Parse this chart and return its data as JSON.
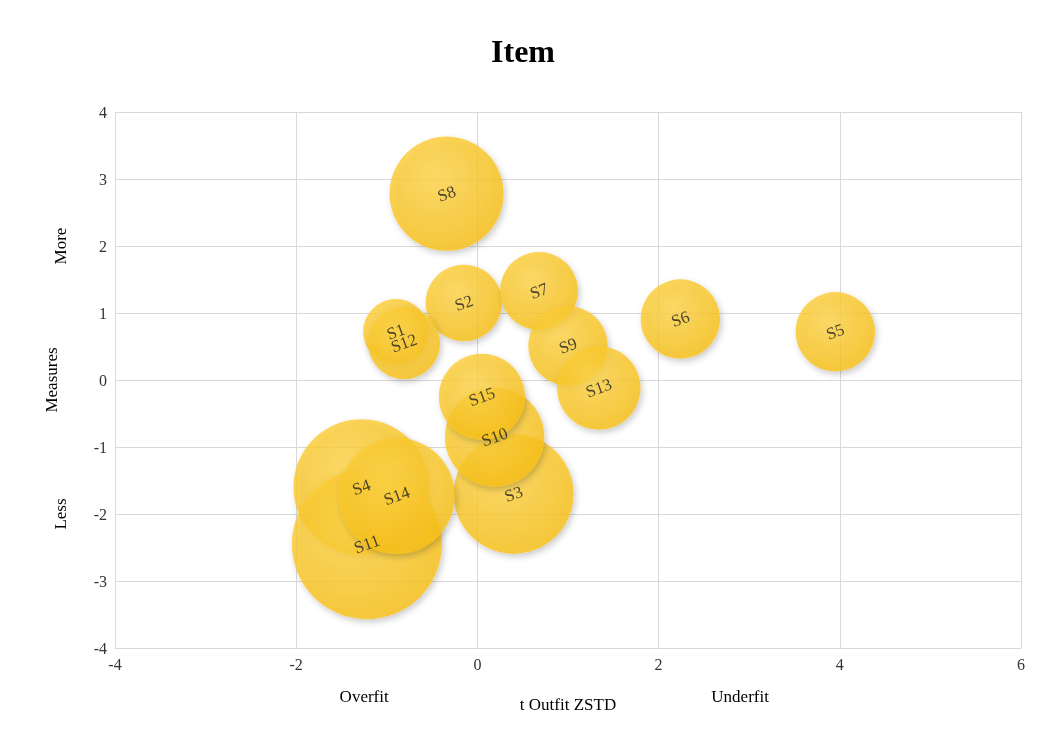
{
  "chart_data": {
    "type": "bubble",
    "title": "Item",
    "xlabel": "t Outfit ZSTD",
    "ylabel": "Measures",
    "annotations": [
      "Overfit",
      "Underfit",
      "Less",
      "More"
    ],
    "xlim": [
      -4,
      6
    ],
    "xticks": [
      -4,
      -2,
      0,
      2,
      4,
      6
    ],
    "ylim": [
      -4,
      4
    ],
    "yticks": [
      -4,
      -3,
      -2,
      -1,
      0,
      1,
      2,
      3,
      4
    ],
    "grid": true,
    "legend": false,
    "marker": "circle",
    "series": [
      {
        "name": "S1",
        "color": "#f7bd0f",
        "x": [
          -0.9
        ],
        "values": [
          0.72
        ],
        "sizes": [
          0.19
        ]
      },
      {
        "name": "S2",
        "color": "#f7bd0f",
        "x": [
          -0.15
        ],
        "values": [
          1.15
        ],
        "sizes": [
          0.26
        ]
      },
      {
        "name": "S3",
        "color": "#f7bd0f",
        "x": [
          0.4
        ],
        "values": [
          -1.7
        ],
        "sizes": [
          0.64
        ]
      },
      {
        "name": "S4",
        "color": "#f7bd0f",
        "x": [
          -1.28
        ],
        "values": [
          -1.6
        ],
        "sizes": [
          0.82
        ]
      },
      {
        "name": "S5",
        "color": "#f7bd0f",
        "x": [
          3.95
        ],
        "values": [
          0.72
        ],
        "sizes": [
          0.28
        ]
      },
      {
        "name": "S6",
        "color": "#f7bd0f",
        "x": [
          2.24
        ],
        "values": [
          0.91
        ],
        "sizes": [
          0.28
        ]
      },
      {
        "name": "S7",
        "color": "#f7bd0f",
        "x": [
          0.68
        ],
        "values": [
          1.33
        ],
        "sizes": [
          0.27
        ]
      },
      {
        "name": "S8",
        "color": "#f7bd0f",
        "x": [
          -0.34
        ],
        "values": [
          2.78
        ],
        "sizes": [
          0.58
        ]
      },
      {
        "name": "S9",
        "color": "#f7bd0f",
        "x": [
          1.0
        ],
        "values": [
          0.51
        ],
        "sizes": [
          0.28
        ]
      },
      {
        "name": "S10",
        "color": "#f7bd0f",
        "x": [
          0.19
        ],
        "values": [
          -0.85
        ],
        "sizes": [
          0.44
        ]
      },
      {
        "name": "S11",
        "color": "#f7bd0f",
        "x": [
          -1.22
        ],
        "values": [
          -2.45
        ],
        "sizes": [
          1
        ]
      },
      {
        "name": "S12",
        "color": "#f7bd0f",
        "x": [
          -0.81
        ],
        "values": [
          0.55
        ],
        "sizes": [
          0.23
        ]
      },
      {
        "name": "S13",
        "color": "#f7bd0f",
        "x": [
          1.34
        ],
        "values": [
          -0.12
        ],
        "sizes": [
          0.31
        ]
      },
      {
        "name": "S14",
        "color": "#f7bd0f",
        "x": [
          -0.89
        ],
        "values": [
          -1.73
        ],
        "sizes": [
          0.6
        ]
      },
      {
        "name": "S15",
        "color": "#f7bd0f",
        "x": [
          0.05
        ],
        "values": [
          -0.25
        ],
        "sizes": [
          0.33
        ]
      }
    ]
  }
}
